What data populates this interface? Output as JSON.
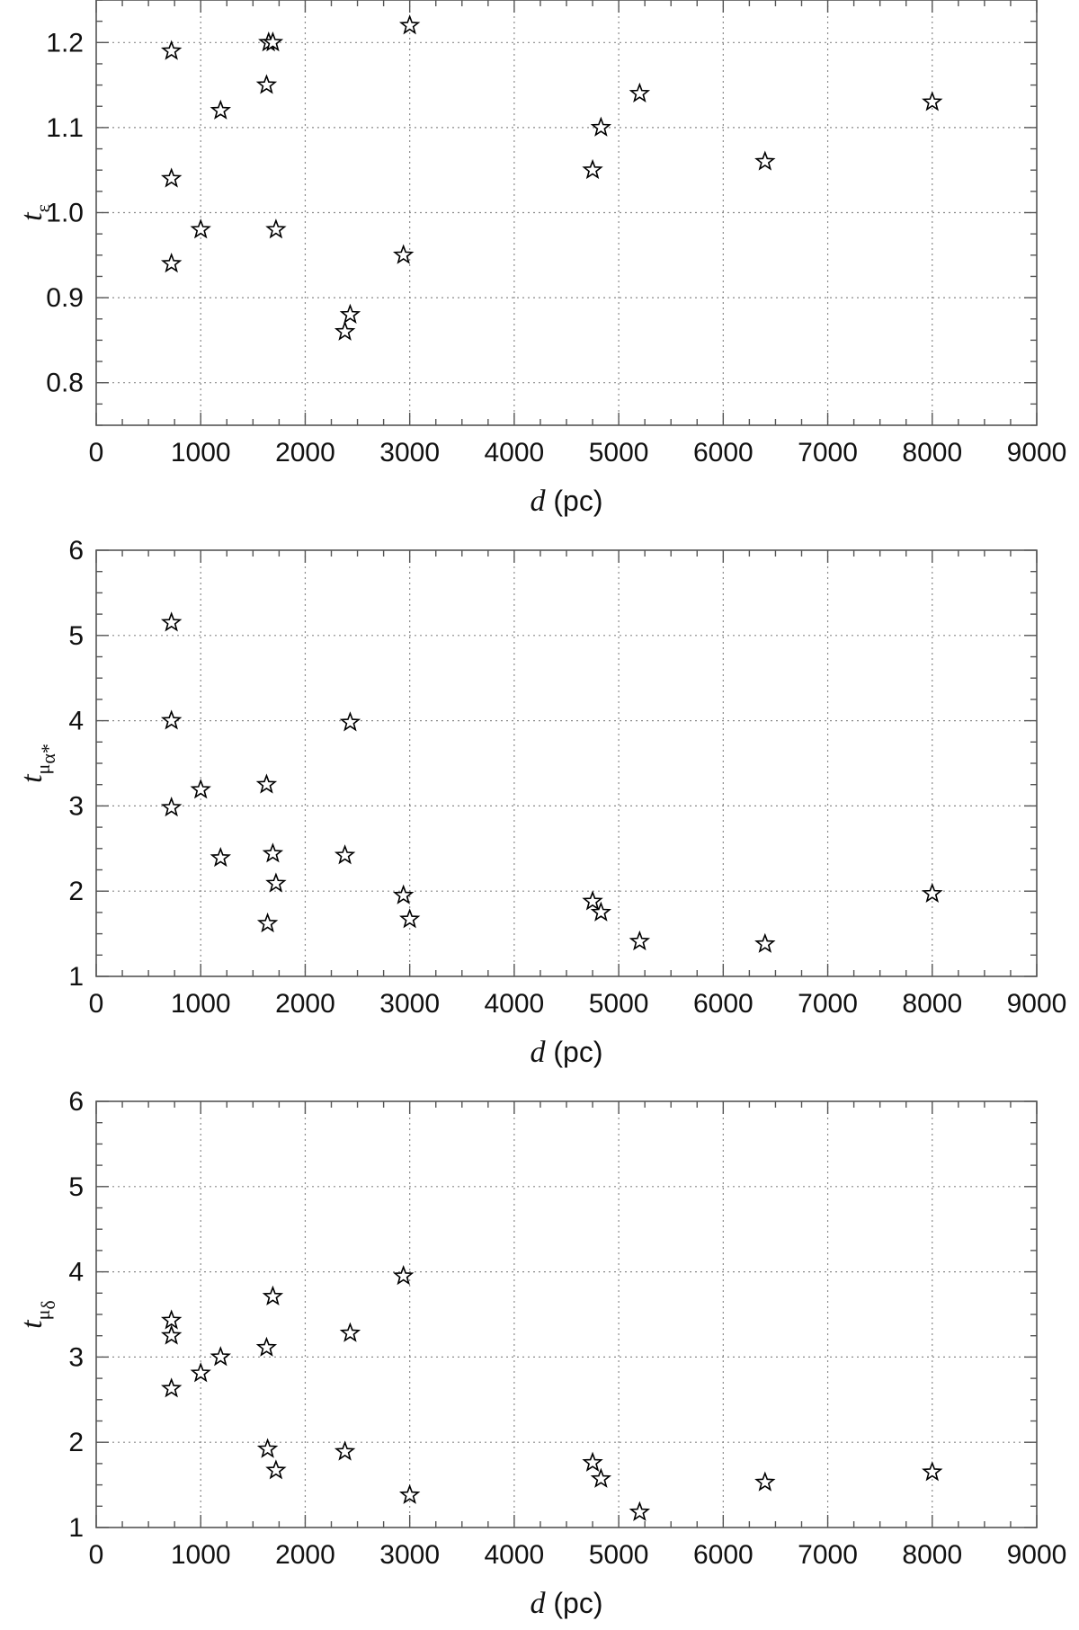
{
  "chart_data": [
    {
      "type": "scatter",
      "xlabel": {
        "var": "d",
        "unit": " (pc)"
      },
      "ylabel": {
        "var": "t",
        "sub": "ε"
      },
      "xlim": [
        0,
        9000
      ],
      "ylim": [
        0.75,
        1.25
      ],
      "xticks": [
        0,
        1000,
        2000,
        3000,
        4000,
        5000,
        6000,
        7000,
        8000,
        9000
      ],
      "yticks": [
        0.8,
        0.9,
        1.0,
        1.1,
        1.2
      ],
      "ytick_labels": [
        "0.8",
        "0.9",
        "1.0",
        "1.1",
        "1.2"
      ],
      "grid": true,
      "marker": "star",
      "x": [
        720,
        720,
        720,
        1000,
        1190,
        1630,
        1650,
        1690,
        1720,
        2380,
        2430,
        2940,
        3000,
        4750,
        4830,
        5200,
        6400,
        8000
      ],
      "y": [
        1.19,
        1.04,
        0.94,
        0.98,
        1.12,
        1.15,
        1.2,
        1.2,
        0.98,
        0.86,
        0.88,
        0.95,
        1.22,
        1.05,
        1.1,
        1.14,
        1.06,
        1.13
      ]
    },
    {
      "type": "scatter",
      "xlabel": {
        "var": "d",
        "unit": " (pc)"
      },
      "ylabel": {
        "var": "t",
        "sub": "μ",
        "subsub": "α*"
      },
      "xlim": [
        0,
        9000
      ],
      "ylim": [
        1,
        6
      ],
      "xticks": [
        0,
        1000,
        2000,
        3000,
        4000,
        5000,
        6000,
        7000,
        8000,
        9000
      ],
      "yticks": [
        1,
        2,
        3,
        4,
        5,
        6
      ],
      "ytick_labels": [
        "1",
        "2",
        "3",
        "4",
        "5",
        "6"
      ],
      "grid": true,
      "marker": "star",
      "x": [
        720,
        720,
        720,
        1000,
        1190,
        1630,
        1640,
        1690,
        1720,
        2380,
        2430,
        2940,
        3000,
        4750,
        4830,
        5200,
        6400,
        8000
      ],
      "y": [
        5.15,
        4.0,
        2.98,
        3.19,
        2.39,
        3.25,
        1.62,
        2.44,
        2.09,
        2.42,
        3.98,
        1.95,
        1.67,
        1.88,
        1.75,
        1.41,
        1.38,
        1.97
      ]
    },
    {
      "type": "scatter",
      "xlabel": {
        "var": "d",
        "unit": " (pc)"
      },
      "ylabel": {
        "var": "t",
        "sub": "μ",
        "subsub": "δ"
      },
      "xlim": [
        0,
        9000
      ],
      "ylim": [
        1,
        6
      ],
      "xticks": [
        0,
        1000,
        2000,
        3000,
        4000,
        5000,
        6000,
        7000,
        8000,
        9000
      ],
      "yticks": [
        1,
        2,
        3,
        4,
        5,
        6
      ],
      "ytick_labels": [
        "1",
        "2",
        "3",
        "4",
        "5",
        "6"
      ],
      "grid": true,
      "marker": "star",
      "x": [
        720,
        720,
        720,
        1000,
        1190,
        1630,
        1640,
        1690,
        1720,
        2380,
        2430,
        2940,
        3000,
        4750,
        4830,
        5200,
        6400,
        8000
      ],
      "y": [
        3.43,
        3.25,
        2.63,
        2.81,
        3.0,
        3.11,
        1.92,
        3.71,
        1.67,
        1.89,
        3.28,
        3.95,
        1.38,
        1.76,
        1.57,
        1.18,
        1.53,
        1.65
      ]
    }
  ]
}
